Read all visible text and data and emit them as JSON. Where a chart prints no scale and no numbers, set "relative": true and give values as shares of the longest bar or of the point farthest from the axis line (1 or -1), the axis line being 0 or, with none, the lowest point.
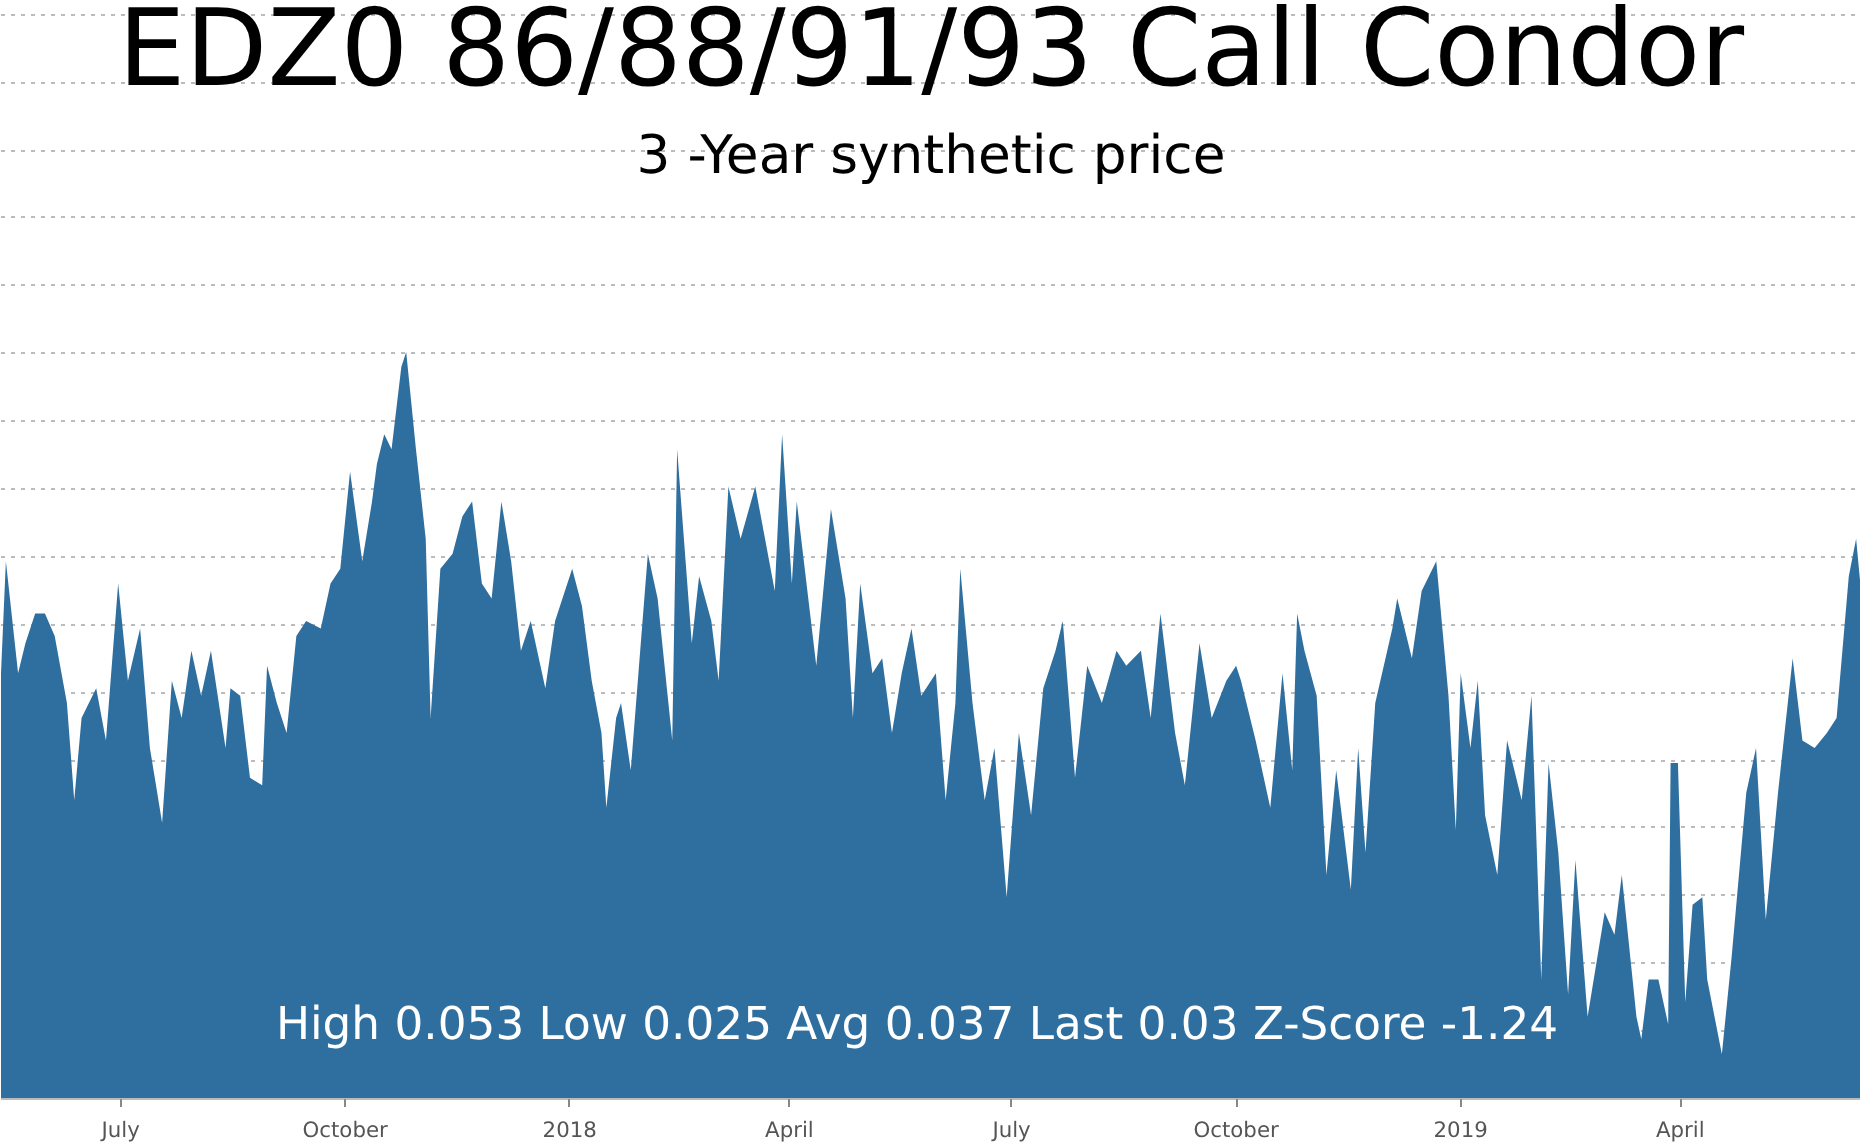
{
  "chart_data": {
    "type": "area",
    "title": "EDZ0 86/88/91/93 Call Condor",
    "subtitle": "3 -Year synthetic price",
    "relative": true,
    "grid": "y",
    "annotations": [
      "High 0.053 Low 0.025 Avg 0.037 Last 0.03 Z-Score -1.24"
    ],
    "xlim": [
      "2017-05-13",
      "2019-06-14"
    ],
    "xticks": [
      {
        "value": "2017-07-01",
        "label": "July"
      },
      {
        "value": "2017-10-01",
        "label": "October"
      },
      {
        "value": "2018-01-01",
        "label": "2018"
      },
      {
        "value": "2018-04-01",
        "label": "April"
      },
      {
        "value": "2018-07-01",
        "label": "July"
      },
      {
        "value": "2018-10-01",
        "label": "October"
      },
      {
        "value": "2019-01-01",
        "label": "2019"
      },
      {
        "value": "2019-04-01",
        "label": "April"
      }
    ],
    "series": [
      {
        "color": "#2f6f9f",
        "x": [
          "2017-05-13",
          "2017-05-15",
          "2017-05-20",
          "2017-05-23",
          "2017-05-27",
          "2017-05-31",
          "2017-06-04",
          "2017-06-09",
          "2017-06-12",
          "2017-06-15",
          "2017-06-21",
          "2017-06-25",
          "2017-06-30",
          "2017-07-04",
          "2017-07-09",
          "2017-07-13",
          "2017-07-18",
          "2017-07-22",
          "2017-07-26",
          "2017-07-30",
          "2017-08-03",
          "2017-08-07",
          "2017-08-13",
          "2017-08-15",
          "2017-08-19",
          "2017-08-23",
          "2017-08-28",
          "2017-08-30",
          "2017-09-03",
          "2017-09-07",
          "2017-09-11",
          "2017-09-15",
          "2017-09-21",
          "2017-09-25",
          "2017-09-29",
          "2017-10-03",
          "2017-10-08",
          "2017-10-12",
          "2017-10-14",
          "2017-10-17",
          "2017-10-20",
          "2017-10-24",
          "2017-10-26",
          "2017-10-30",
          "2017-11-03",
          "2017-11-05",
          "2017-11-09",
          "2017-11-14",
          "2017-11-18",
          "2017-11-22",
          "2017-11-26",
          "2017-11-30",
          "2017-12-04",
          "2017-12-08",
          "2017-12-12",
          "2017-12-16",
          "2017-12-22",
          "2017-12-26",
          "2018-01-02",
          "2018-01-06",
          "2018-01-10",
          "2018-01-14",
          "2018-01-16",
          "2018-01-20",
          "2018-01-22",
          "2018-01-26",
          "2018-02-02",
          "2018-02-06",
          "2018-02-12",
          "2018-02-14",
          "2018-02-20",
          "2018-02-23",
          "2018-02-28",
          "2018-03-03",
          "2018-03-07",
          "2018-03-12",
          "2018-03-18",
          "2018-03-22",
          "2018-03-26",
          "2018-03-29",
          "2018-04-02",
          "2018-04-04",
          "2018-04-12",
          "2018-04-18",
          "2018-04-24",
          "2018-04-27",
          "2018-04-30",
          "2018-05-05",
          "2018-05-09",
          "2018-05-13",
          "2018-05-17",
          "2018-05-21",
          "2018-05-25",
          "2018-05-31",
          "2018-06-04",
          "2018-06-08",
          "2018-06-10",
          "2018-06-15",
          "2018-06-20",
          "2018-06-24",
          "2018-06-29",
          "2018-07-04",
          "2018-07-09",
          "2018-07-14",
          "2018-07-19",
          "2018-07-22",
          "2018-07-27",
          "2018-08-01",
          "2018-08-07",
          "2018-08-13",
          "2018-08-17",
          "2018-08-23",
          "2018-08-27",
          "2018-08-31",
          "2018-09-06",
          "2018-09-10",
          "2018-09-16",
          "2018-09-21",
          "2018-09-27",
          "2018-10-01",
          "2018-10-03",
          "2018-10-09",
          "2018-10-15",
          "2018-10-20",
          "2018-10-24",
          "2018-10-26",
          "2018-10-29",
          "2018-11-03",
          "2018-11-07",
          "2018-11-11",
          "2018-11-17",
          "2018-11-20",
          "2018-11-23",
          "2018-11-27",
          "2018-12-04",
          "2018-12-06",
          "2018-12-12",
          "2018-12-16",
          "2018-12-22",
          "2018-12-27",
          "2018-12-30",
          "2019-01-01",
          "2019-01-05",
          "2019-01-08",
          "2019-01-11",
          "2019-01-16",
          "2019-01-20",
          "2019-01-26",
          "2019-01-30",
          "2019-02-03",
          "2019-02-06",
          "2019-02-10",
          "2019-02-14",
          "2019-02-17",
          "2019-02-22",
          "2019-03-01",
          "2019-03-05",
          "2019-03-08",
          "2019-03-14",
          "2019-03-16",
          "2019-03-19",
          "2019-03-23",
          "2019-03-27",
          "2019-03-28",
          "2019-03-31",
          "2019-04-03",
          "2019-04-06",
          "2019-04-10",
          "2019-04-12",
          "2019-04-18",
          "2019-04-22",
          "2019-04-28",
          "2019-05-02",
          "2019-05-06",
          "2019-05-11",
          "2019-05-17",
          "2019-05-21",
          "2019-05-26",
          "2019-05-31",
          "2019-06-04",
          "2019-06-09",
          "2019-06-12",
          "2019-06-14"
        ],
        "values": [
          0.57,
          0.72,
          0.57,
          0.61,
          0.65,
          0.65,
          0.62,
          0.53,
          0.4,
          0.51,
          0.55,
          0.48,
          0.69,
          0.56,
          0.63,
          0.47,
          0.37,
          0.56,
          0.51,
          0.6,
          0.54,
          0.6,
          0.47,
          0.55,
          0.54,
          0.43,
          0.42,
          0.58,
          0.53,
          0.49,
          0.62,
          0.64,
          0.63,
          0.69,
          0.71,
          0.84,
          0.72,
          0.8,
          0.85,
          0.89,
          0.87,
          0.98,
          1.0,
          0.87,
          0.75,
          0.51,
          0.71,
          0.73,
          0.78,
          0.8,
          0.69,
          0.67,
          0.8,
          0.72,
          0.6,
          0.64,
          0.55,
          0.64,
          0.71,
          0.66,
          0.56,
          0.49,
          0.39,
          0.51,
          0.53,
          0.44,
          0.73,
          0.67,
          0.48,
          0.87,
          0.61,
          0.7,
          0.64,
          0.56,
          0.82,
          0.75,
          0.82,
          0.75,
          0.68,
          0.89,
          0.69,
          0.8,
          0.58,
          0.79,
          0.67,
          0.51,
          0.69,
          0.57,
          0.59,
          0.49,
          0.57,
          0.63,
          0.54,
          0.57,
          0.4,
          0.53,
          0.71,
          0.53,
          0.4,
          0.47,
          0.27,
          0.49,
          0.38,
          0.55,
          0.6,
          0.64,
          0.43,
          0.58,
          0.53,
          0.6,
          0.58,
          0.6,
          0.51,
          0.65,
          0.49,
          0.42,
          0.61,
          0.51,
          0.56,
          0.58,
          0.56,
          0.48,
          0.39,
          0.57,
          0.44,
          0.65,
          0.6,
          0.54,
          0.3,
          0.44,
          0.28,
          0.47,
          0.33,
          0.53,
          0.63,
          0.67,
          0.59,
          0.68,
          0.72,
          0.54,
          0.36,
          0.57,
          0.47,
          0.56,
          0.38,
          0.3,
          0.48,
          0.4,
          0.54,
          0.16,
          0.45,
          0.33,
          0.14,
          0.32,
          0.11,
          0.25,
          0.22,
          0.3,
          0.11,
          0.08,
          0.16,
          0.16,
          0.1,
          0.45,
          0.45,
          0.13,
          0.26,
          0.27,
          0.16,
          0.06,
          0.19,
          0.41,
          0.47,
          0.24,
          0.41,
          0.59,
          0.48,
          0.47,
          0.49,
          0.51,
          0.7,
          0.75,
          0.68
        ]
      }
    ]
  }
}
